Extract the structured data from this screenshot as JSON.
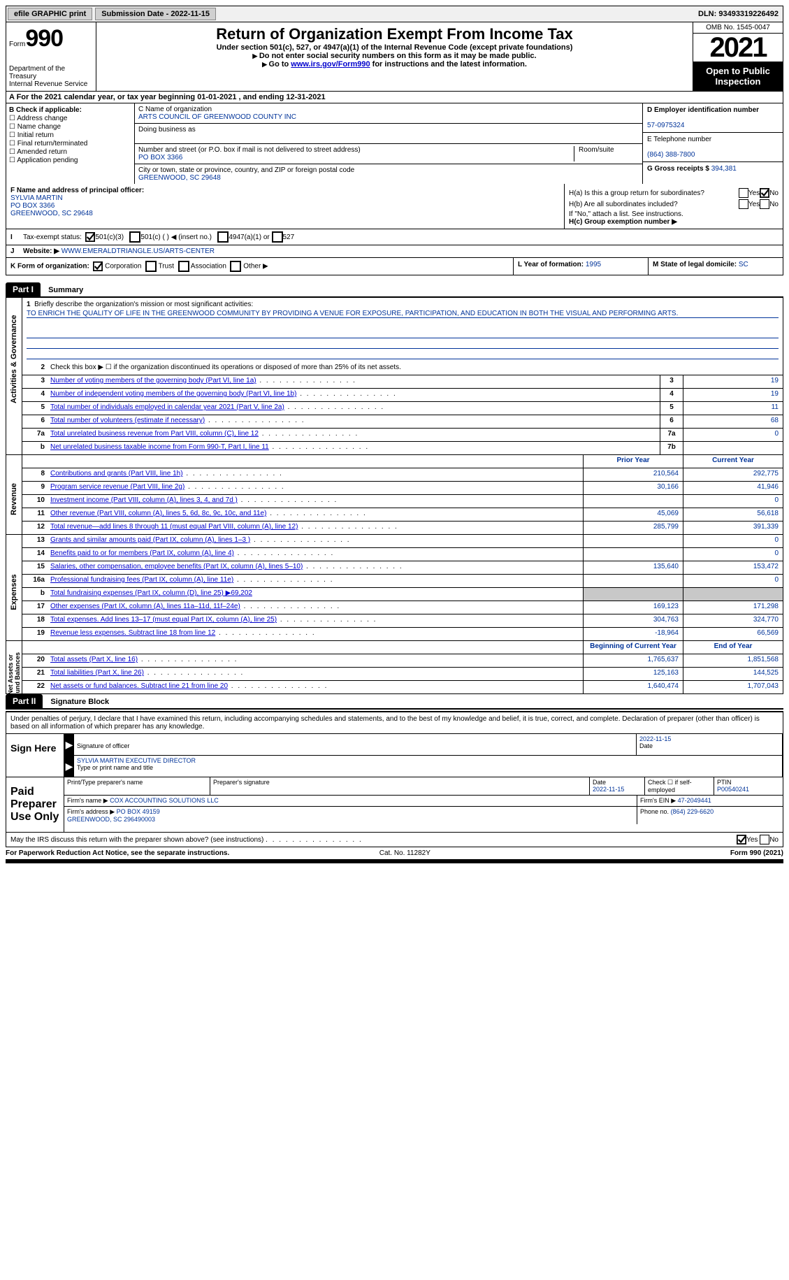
{
  "toolbar": {
    "efile_btn": "efile GRAPHIC print",
    "sub_date_label": "Submission Date - 2022-11-15",
    "dln": "DLN: 93493319226492"
  },
  "header": {
    "form_word": "Form",
    "form_num": "990",
    "dept": "Department of the Treasury\nInternal Revenue Service",
    "title": "Return of Organization Exempt From Income Tax",
    "sub1": "Under section 501(c), 527, or 4947(a)(1) of the Internal Revenue Code (except private foundations)",
    "sub2": "Do not enter social security numbers on this form as it may be made public.",
    "sub3_pre": "Go to ",
    "sub3_link": "www.irs.gov/Form990",
    "sub3_post": " for instructions and the latest information.",
    "omb": "OMB No. 1545-0047",
    "year": "2021",
    "open": "Open to Public Inspection"
  },
  "a_line": "A For the 2021 calendar year, or tax year beginning 01-01-2021    , and ending 12-31-2021",
  "b": {
    "title": "B Check if applicable:",
    "opts": [
      "Address change",
      "Name change",
      "Initial return",
      "Final return/terminated",
      "Amended return",
      "Application pending"
    ]
  },
  "c": {
    "name_lbl": "C Name of organization",
    "name": "ARTS COUNCIL OF GREENWOOD COUNTY INC",
    "dba_lbl": "Doing business as",
    "addr_lbl": "Number and street (or P.O. box if mail is not delivered to street address)",
    "room_lbl": "Room/suite",
    "addr": "PO BOX 3366",
    "city_lbl": "City or town, state or province, country, and ZIP or foreign postal code",
    "city": "GREENWOOD, SC  29648"
  },
  "d": {
    "ein_lbl": "D Employer identification number",
    "ein": "57-0975324",
    "tel_lbl": "E Telephone number",
    "tel": "(864) 388-7800",
    "gross_lbl": "G Gross receipts $",
    "gross": "394,381"
  },
  "f": {
    "lbl": "F Name and address of principal officer:",
    "name": "SYLVIA MARTIN",
    "addr1": "PO BOX 3366",
    "addr2": "GREENWOOD, SC  29648"
  },
  "h": {
    "ha": "H(a)  Is this a group return for subordinates?",
    "hb": "H(b)  Are all subordinates included?",
    "hb_note": "If \"No,\" attach a list. See instructions.",
    "hc": "H(c)  Group exemption number ▶",
    "yes": "Yes",
    "no": "No"
  },
  "i": {
    "lbl": "Tax-exempt status:",
    "o1": "501(c)(3)",
    "o2": "501(c) (  ) ◀ (insert no.)",
    "o3": "4947(a)(1) or",
    "o4": "527"
  },
  "j": {
    "lbl": "Website: ▶",
    "val": "WWW.EMERALDTRIANGLE.US/ARTS-CENTER"
  },
  "k": {
    "lbl": "K Form of organization:",
    "opts": [
      "Corporation",
      "Trust",
      "Association",
      "Other ▶"
    ]
  },
  "l": {
    "lbl": "L Year of formation:",
    "val": "1995"
  },
  "m": {
    "lbl": "M State of legal domicile:",
    "val": "SC"
  },
  "part1": {
    "label": "Part I",
    "title": "Summary"
  },
  "summary": {
    "m1_lbl": "Briefly describe the organization's mission or most significant activities:",
    "m1_val": "TO ENRICH THE QUALITY OF LIFE IN THE GREENWOOD COMMUNITY BY PROVIDING A VENUE FOR EXPOSURE, PARTICIPATION, AND EDUCATION IN BOTH THE VISUAL AND PERFORMING ARTS.",
    "l2": "Check this box ▶ ☐ if the organization discontinued its operations or disposed of more than 25% of its net assets.",
    "lines_a": [
      {
        "n": "3",
        "d": "Number of voting members of the governing body (Part VI, line 1a)",
        "box": "3",
        "v": "19"
      },
      {
        "n": "4",
        "d": "Number of independent voting members of the governing body (Part VI, line 1b)",
        "box": "4",
        "v": "19"
      },
      {
        "n": "5",
        "d": "Total number of individuals employed in calendar year 2021 (Part V, line 2a)",
        "box": "5",
        "v": "11"
      },
      {
        "n": "6",
        "d": "Total number of volunteers (estimate if necessary)",
        "box": "6",
        "v": "68"
      },
      {
        "n": "7a",
        "d": "Total unrelated business revenue from Part VIII, column (C), line 12",
        "box": "7a",
        "v": "0"
      },
      {
        "n": "b",
        "d": "Net unrelated business taxable income from Form 990-T, Part I, line 11",
        "box": "7b",
        "v": ""
      }
    ],
    "col_prior": "Prior Year",
    "col_curr": "Current Year",
    "rev": [
      {
        "n": "8",
        "d": "Contributions and grants (Part VIII, line 1h)",
        "p": "210,564",
        "c": "292,775"
      },
      {
        "n": "9",
        "d": "Program service revenue (Part VIII, line 2g)",
        "p": "30,166",
        "c": "41,946"
      },
      {
        "n": "10",
        "d": "Investment income (Part VIII, column (A), lines 3, 4, and 7d )",
        "p": "",
        "c": "0"
      },
      {
        "n": "11",
        "d": "Other revenue (Part VIII, column (A), lines 5, 6d, 8c, 9c, 10c, and 11e)",
        "p": "45,069",
        "c": "56,618"
      },
      {
        "n": "12",
        "d": "Total revenue—add lines 8 through 11 (must equal Part VIII, column (A), line 12)",
        "p": "285,799",
        "c": "391,339"
      }
    ],
    "exp": [
      {
        "n": "13",
        "d": "Grants and similar amounts paid (Part IX, column (A), lines 1–3 )",
        "p": "",
        "c": "0"
      },
      {
        "n": "14",
        "d": "Benefits paid to or for members (Part IX, column (A), line 4)",
        "p": "",
        "c": "0"
      },
      {
        "n": "15",
        "d": "Salaries, other compensation, employee benefits (Part IX, column (A), lines 5–10)",
        "p": "135,640",
        "c": "153,472"
      },
      {
        "n": "16a",
        "d": "Professional fundraising fees (Part IX, column (A), line 11e)",
        "p": "",
        "c": "0"
      },
      {
        "n": "b",
        "d": "Total fundraising expenses (Part IX, column (D), line 25) ▶69,202",
        "p": "SHADE",
        "c": "SHADE"
      },
      {
        "n": "17",
        "d": "Other expenses (Part IX, column (A), lines 11a–11d, 11f–24e)",
        "p": "169,123",
        "c": "171,298"
      },
      {
        "n": "18",
        "d": "Total expenses. Add lines 13–17 (must equal Part IX, column (A), line 25)",
        "p": "304,763",
        "c": "324,770"
      },
      {
        "n": "19",
        "d": "Revenue less expenses. Subtract line 18 from line 12",
        "p": "-18,964",
        "c": "66,569"
      }
    ],
    "col_beg": "Beginning of Current Year",
    "col_end": "End of Year",
    "net": [
      {
        "n": "20",
        "d": "Total assets (Part X, line 16)",
        "p": "1,765,637",
        "c": "1,851,568"
      },
      {
        "n": "21",
        "d": "Total liabilities (Part X, line 26)",
        "p": "125,163",
        "c": "144,525"
      },
      {
        "n": "22",
        "d": "Net assets or fund balances. Subtract line 21 from line 20",
        "p": "1,640,474",
        "c": "1,707,043"
      }
    ]
  },
  "vlabels": {
    "act": "Activities & Governance",
    "rev": "Revenue",
    "exp": "Expenses",
    "net": "Net Assets or\nFund Balances"
  },
  "part2": {
    "label": "Part II",
    "title": "Signature Block"
  },
  "sig": {
    "decl": "Under penalties of perjury, I declare that I have examined this return, including accompanying schedules and statements, and to the best of my knowledge and belief, it is true, correct, and complete. Declaration of preparer (other than officer) is based on all information of which preparer has any knowledge.",
    "sign_here": "Sign Here",
    "sig_officer": "Signature of officer",
    "sig_date": "2022-11-15",
    "date_lbl": "Date",
    "typed": "SYLVIA MARTIN  EXECUTIVE DIRECTOR",
    "typed_lbl": "Type or print name and title",
    "paid": "Paid Preparer Use Only",
    "pp_name_lbl": "Print/Type preparer's name",
    "pp_sig_lbl": "Preparer's signature",
    "pp_date_lbl": "Date",
    "pp_date": "2022-11-15",
    "pp_check_lbl": "Check ☐ if self-employed",
    "ptin_lbl": "PTIN",
    "ptin": "P00540241",
    "firm_name_lbl": "Firm's name    ▶",
    "firm_name": "COX ACCOUNTING SOLUTIONS LLC",
    "firm_ein_lbl": "Firm's EIN ▶",
    "firm_ein": "47-2049441",
    "firm_addr_lbl": "Firm's address ▶",
    "firm_addr": "PO BOX 49159\nGREENWOOD, SC  296490003",
    "phone_lbl": "Phone no.",
    "phone": "(864) 229-6620",
    "discuss": "May the IRS discuss this return with the preparer shown above? (see instructions)"
  },
  "footer": {
    "pra": "For Paperwork Reduction Act Notice, see the separate instructions.",
    "cat": "Cat. No. 11282Y",
    "form": "Form 990 (2021)"
  },
  "colors": {
    "link": "#0000cc",
    "data_text": "#003399",
    "shade": "#c8c8c8"
  }
}
